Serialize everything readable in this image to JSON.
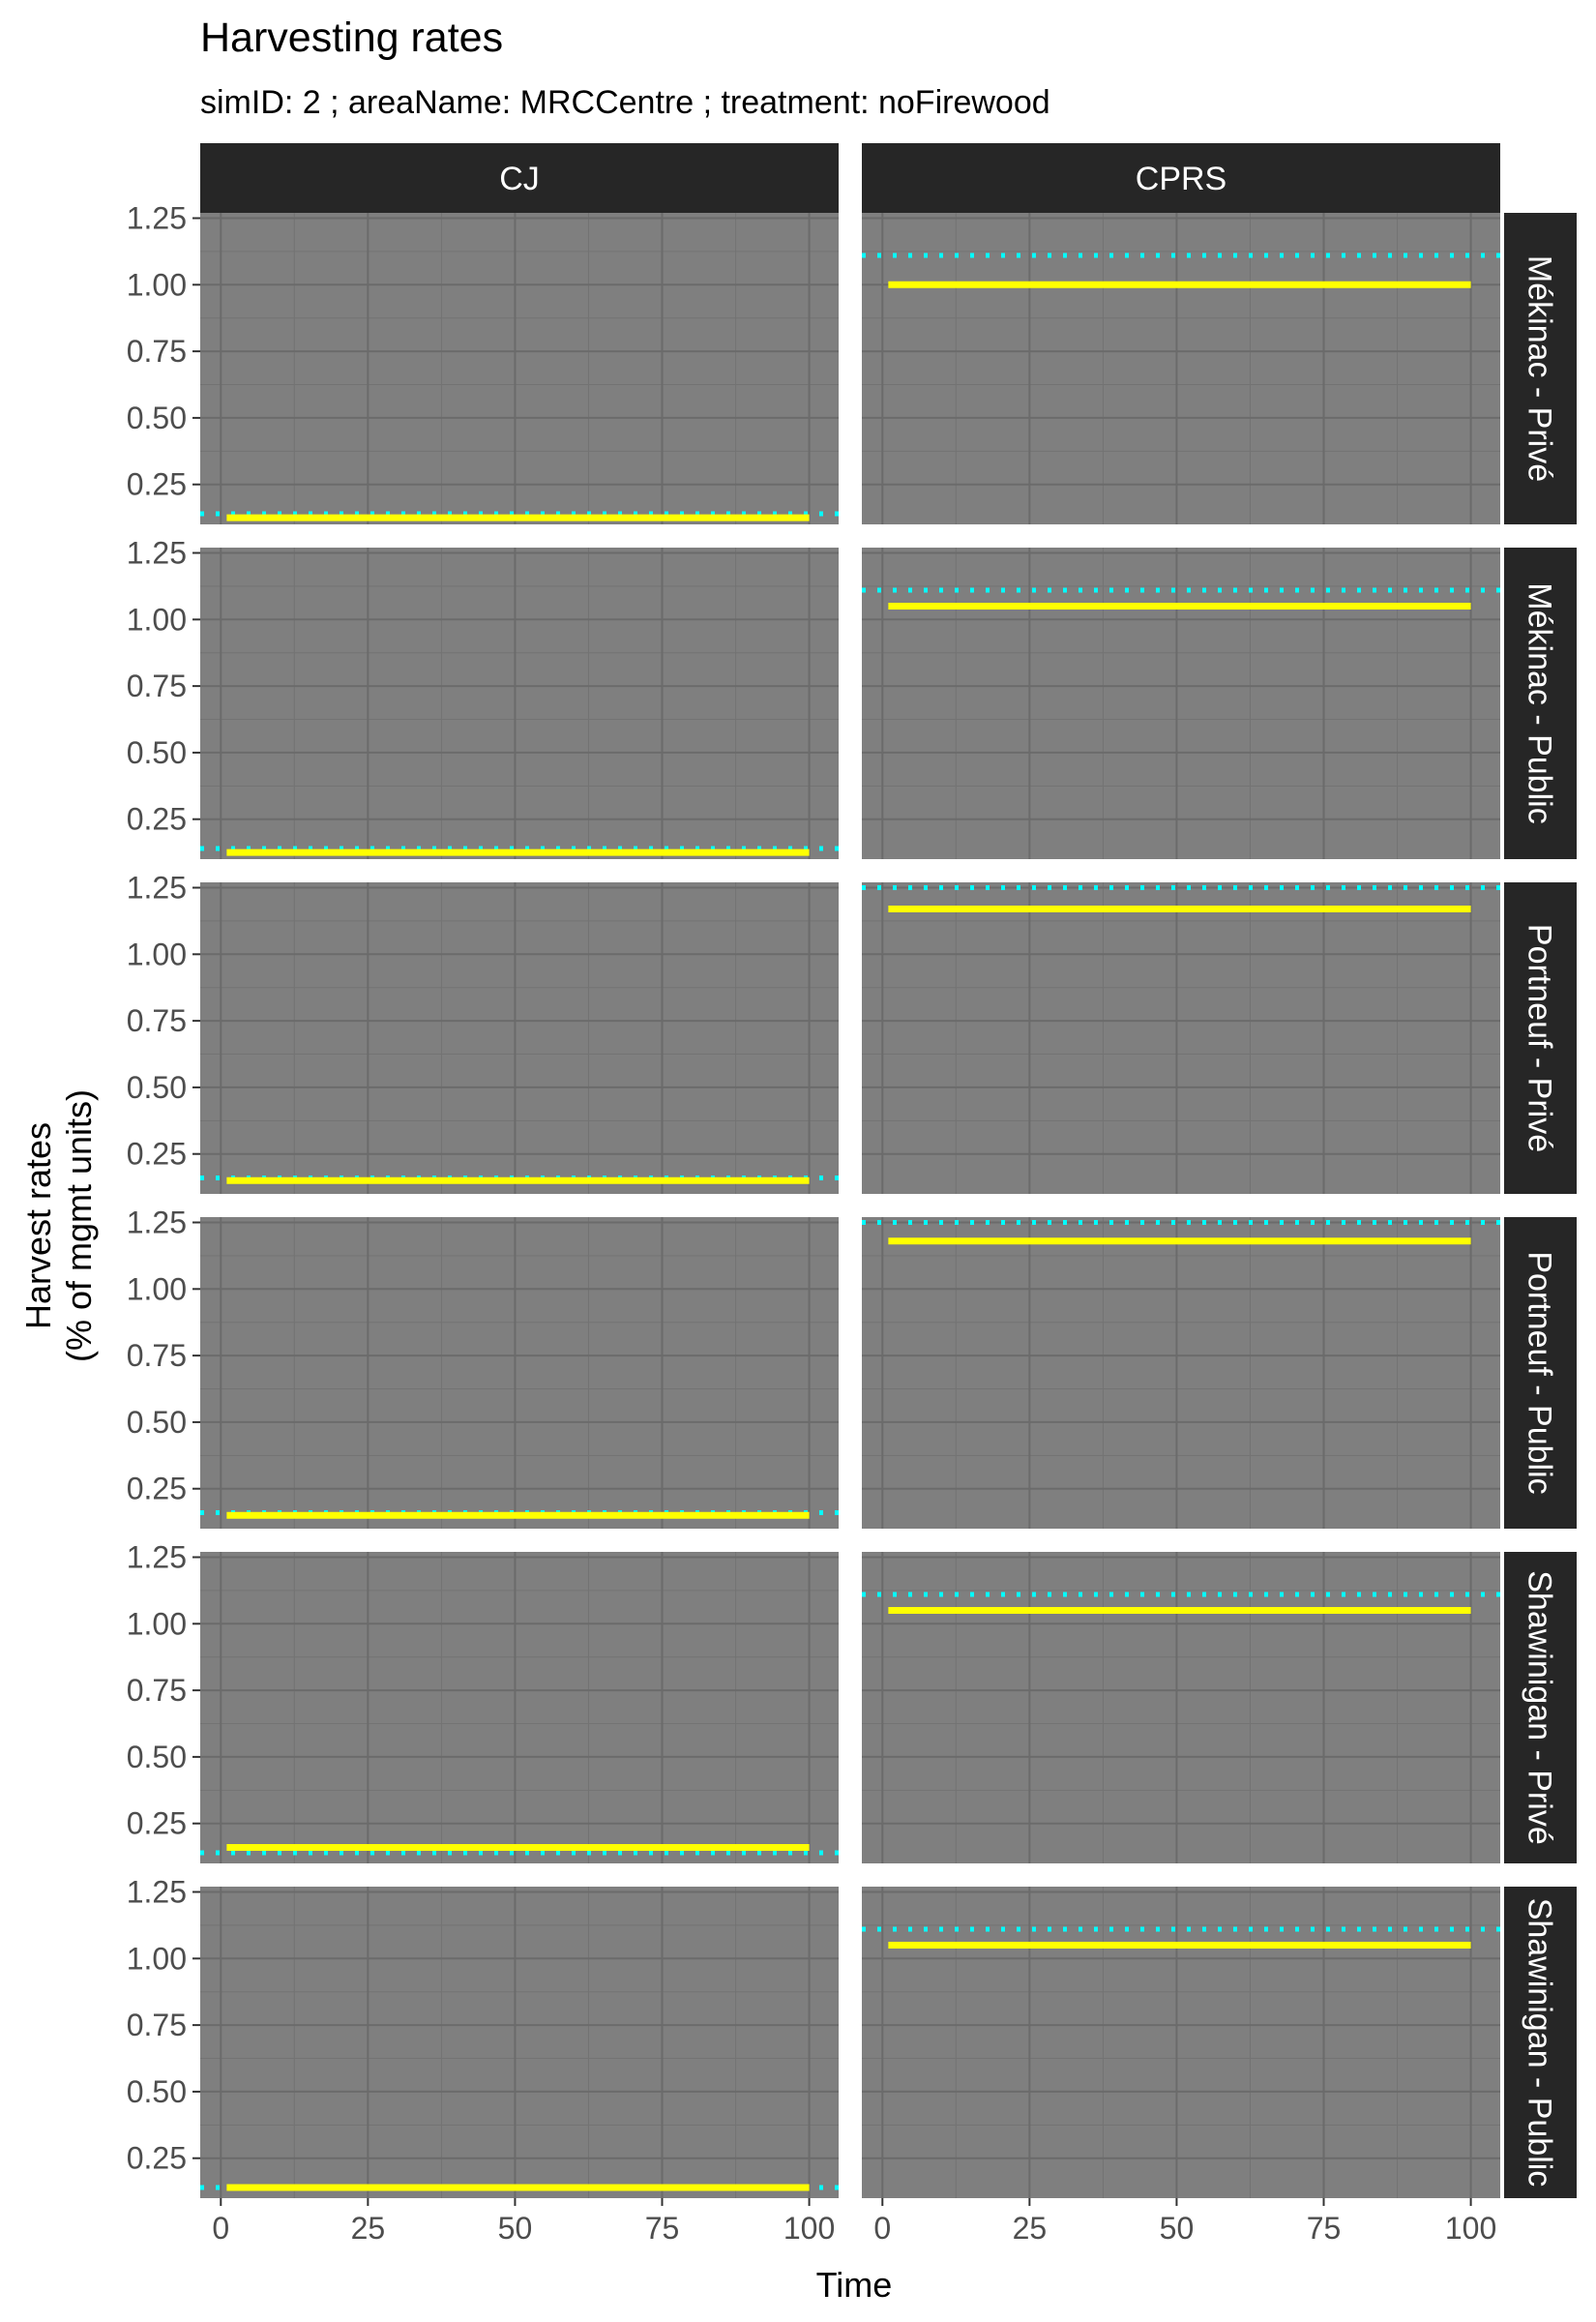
{
  "chart_data": {
    "type": "line",
    "title": "Harvesting rates",
    "subtitle": "simID: 2 ; areaName: MRCCentre ; treatment: noFirewood",
    "xlabel": "Time",
    "ylabel_lines": [
      "Harvest rates",
      "(% of mgmt units)"
    ],
    "x_ticks": [
      0,
      25,
      50,
      75,
      100
    ],
    "y_ticks": [
      0.25,
      0.5,
      0.75,
      1.0,
      1.25
    ],
    "y_tick_labels": [
      "0.25",
      "0.50",
      "0.75",
      "1.00",
      "1.25"
    ],
    "xlim": [
      -3.5,
      105
    ],
    "ylim": [
      0.1,
      1.27
    ],
    "x_series_range": [
      1,
      100
    ],
    "columns": [
      "CJ",
      "CPRS"
    ],
    "rows": [
      "Mékinac - Privé",
      "Mékinac - Public",
      "Portneuf - Privé",
      "Portneuf - Public",
      "Shawinigan - Privé",
      "Shawinigan - Public"
    ],
    "series_styles": {
      "realized": {
        "color": "#ffff00",
        "line": "solid"
      },
      "target": {
        "color": "#00ffff",
        "line": "dotted"
      }
    },
    "panels": [
      {
        "row": "Mékinac - Privé",
        "col": "CJ",
        "realized": 0.125,
        "target": 0.14
      },
      {
        "row": "Mékinac - Privé",
        "col": "CPRS",
        "realized": 1.0,
        "target": 1.11
      },
      {
        "row": "Mékinac - Public",
        "col": "CJ",
        "realized": 0.125,
        "target": 0.14
      },
      {
        "row": "Mékinac - Public",
        "col": "CPRS",
        "realized": 1.05,
        "target": 1.11
      },
      {
        "row": "Portneuf - Privé",
        "col": "CJ",
        "realized": 0.15,
        "target": 0.16
      },
      {
        "row": "Portneuf - Privé",
        "col": "CPRS",
        "realized": 1.17,
        "target": 1.25
      },
      {
        "row": "Portneuf - Public",
        "col": "CJ",
        "realized": 0.15,
        "target": 0.16
      },
      {
        "row": "Portneuf - Public",
        "col": "CPRS",
        "realized": 1.18,
        "target": 1.25
      },
      {
        "row": "Shawinigan - Privé",
        "col": "CJ",
        "realized": 0.16,
        "target": 0.14
      },
      {
        "row": "Shawinigan - Privé",
        "col": "CPRS",
        "realized": 1.05,
        "target": 1.11
      },
      {
        "row": "Shawinigan - Public",
        "col": "CJ",
        "realized": 0.14,
        "target": 0.14
      },
      {
        "row": "Shawinigan - Public",
        "col": "CPRS",
        "realized": 1.05,
        "target": 1.11
      }
    ]
  }
}
